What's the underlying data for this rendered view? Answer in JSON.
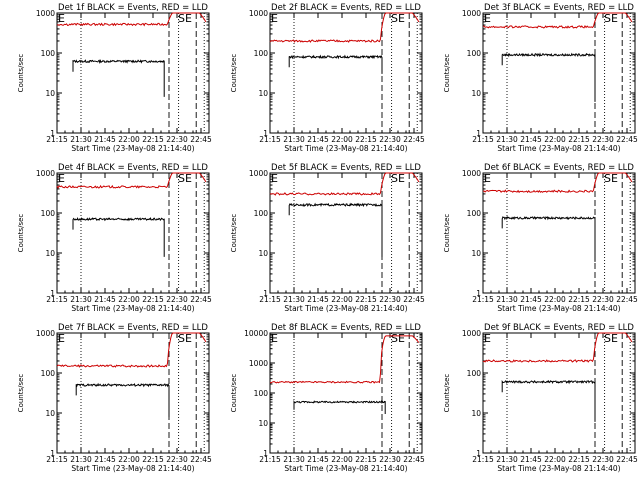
{
  "chart_data": [
    {
      "type": "line",
      "title": "Det 1f BLACK = Events, RED = LLD",
      "xlabel": "Start Time (23-May-08 21:14:40)",
      "ylabel": "Counts/sec",
      "xticks": [
        "21:15",
        "21:30",
        "21:45",
        "22:00",
        "22:15",
        "22:30",
        "22:45"
      ],
      "yticks": [
        "1",
        "10",
        "100",
        "1000"
      ],
      "ylim": [
        1,
        1000
      ],
      "yscale": "log",
      "markers": [
        {
          "label": "E",
          "x": "21:15"
        },
        {
          "label": "SE",
          "x": "22:30"
        }
      ],
      "series": [
        {
          "name": "Events",
          "color": "#000000",
          "start": "21:25",
          "end": "22:22",
          "level": 62,
          "dip_to": 8
        },
        {
          "name": "LLD",
          "color": "#cc0000",
          "start": "21:15",
          "end": "22:48",
          "level": 520,
          "end_level": 1000
        }
      ]
    },
    {
      "type": "line",
      "title": "Det 2f BLACK = Events, RED = LLD",
      "xlabel": "Start Time (23-May-08 21:14:40)",
      "ylabel": "Counts/sec",
      "xticks": [
        "21:15",
        "21:30",
        "21:45",
        "22:00",
        "22:15",
        "22:30",
        "22:45"
      ],
      "yticks": [
        "1",
        "10",
        "100",
        "1000"
      ],
      "ylim": [
        1,
        1000
      ],
      "yscale": "log",
      "markers": [
        {
          "label": "E",
          "x": "21:15"
        },
        {
          "label": "SE",
          "x": "22:30"
        }
      ],
      "series": [
        {
          "name": "Events",
          "color": "#000000",
          "start": "21:27",
          "end": "22:25",
          "level": 80,
          "dip_to": 30
        },
        {
          "name": "LLD",
          "color": "#cc0000",
          "start": "21:15",
          "end": "22:48",
          "level": 200,
          "end_level": 1000
        }
      ]
    },
    {
      "type": "line",
      "title": "Det 3f BLACK = Events, RED = LLD",
      "xlabel": "Start Time (23-May-08 21:14:40)",
      "ylabel": "Counts/sec",
      "xticks": [
        "21:15",
        "21:30",
        "21:45",
        "22:00",
        "22:15",
        "22:30",
        "22:45"
      ],
      "yticks": [
        "1",
        "10",
        "100",
        "1000"
      ],
      "ylim": [
        1,
        1000
      ],
      "yscale": "log",
      "markers": [
        {
          "label": "E",
          "x": "21:15"
        },
        {
          "label": "SE",
          "x": "22:30"
        }
      ],
      "series": [
        {
          "name": "Events",
          "color": "#000000",
          "start": "21:27",
          "end": "22:25",
          "level": 90,
          "dip_to": 6
        },
        {
          "name": "LLD",
          "color": "#cc0000",
          "start": "21:15",
          "end": "22:48",
          "level": 450,
          "end_level": 1000
        }
      ]
    },
    {
      "type": "line",
      "title": "Det 4f BLACK = Events, RED = LLD",
      "xlabel": "Start Time (23-May-08 21:14:40)",
      "ylabel": "Counts/sec",
      "xticks": [
        "21:15",
        "21:30",
        "21:45",
        "22:00",
        "22:15",
        "22:30",
        "22:45"
      ],
      "yticks": [
        "1",
        "10",
        "100",
        "1000"
      ],
      "ylim": [
        1,
        1000
      ],
      "yscale": "log",
      "markers": [
        {
          "label": "E",
          "x": "21:15"
        },
        {
          "label": "SE",
          "x": "22:30"
        }
      ],
      "series": [
        {
          "name": "Events",
          "color": "#000000",
          "start": "21:25",
          "end": "22:22",
          "level": 70,
          "dip_to": 8
        },
        {
          "name": "LLD",
          "color": "#cc0000",
          "start": "21:15",
          "end": "22:48",
          "level": 450,
          "end_level": 1000
        }
      ]
    },
    {
      "type": "line",
      "title": "Det 5f BLACK = Events, RED = LLD",
      "xlabel": "Start Time (23-May-08 21:14:40)",
      "ylabel": "Counts/sec",
      "xticks": [
        "21:15",
        "21:30",
        "21:45",
        "22:00",
        "22:15",
        "22:30",
        "22:45"
      ],
      "yticks": [
        "1",
        "10",
        "100",
        "1000"
      ],
      "ylim": [
        1,
        1000
      ],
      "yscale": "log",
      "markers": [
        {
          "label": "E",
          "x": "21:15"
        },
        {
          "label": "SE",
          "x": "22:30"
        }
      ],
      "series": [
        {
          "name": "Events",
          "color": "#000000",
          "start": "21:27",
          "end": "22:25",
          "level": 160,
          "dip_to": 8
        },
        {
          "name": "LLD",
          "color": "#cc0000",
          "start": "21:15",
          "end": "22:48",
          "level": 300,
          "end_level": 1000
        }
      ]
    },
    {
      "type": "line",
      "title": "Det 6f BLACK = Events, RED = LLD",
      "xlabel": "Start Time (23-May-08 21:14:40)",
      "ylabel": "Counts/sec",
      "xticks": [
        "21:15",
        "21:30",
        "21:45",
        "22:00",
        "22:15",
        "22:30",
        "22:45"
      ],
      "yticks": [
        "1",
        "10",
        "100",
        "1000"
      ],
      "ylim": [
        1,
        1000
      ],
      "yscale": "log",
      "markers": [
        {
          "label": "E",
          "x": "21:15"
        },
        {
          "label": "SE",
          "x": "22:30"
        }
      ],
      "series": [
        {
          "name": "Events",
          "color": "#000000",
          "start": "21:27",
          "end": "22:25",
          "level": 75,
          "dip_to": 6
        },
        {
          "name": "LLD",
          "color": "#cc0000",
          "start": "21:15",
          "end": "22:48",
          "level": 350,
          "end_level": 1000
        }
      ]
    },
    {
      "type": "line",
      "title": "Det 7f BLACK = Events, RED = LLD",
      "xlabel": "Start Time (23-May-08 21:14:40)",
      "ylabel": "Counts/sec",
      "xticks": [
        "21:15",
        "21:30",
        "21:45",
        "22:00",
        "22:15",
        "22:30",
        "22:45"
      ],
      "yticks": [
        "1",
        "10",
        "100",
        "1000"
      ],
      "ylim": [
        1,
        1000
      ],
      "yscale": "log",
      "markers": [
        {
          "label": "E",
          "x": "21:15"
        },
        {
          "label": "SE",
          "x": "22:30"
        }
      ],
      "series": [
        {
          "name": "Events",
          "color": "#000000",
          "start": "21:27",
          "end": "22:25",
          "level": 50,
          "dip_to": 8
        },
        {
          "name": "LLD",
          "color": "#cc0000",
          "start": "21:15",
          "end": "22:48",
          "level": 150,
          "end_level": 1000
        }
      ]
    },
    {
      "type": "line",
      "title": "Det 8f BLACK = Events, RED = LLD",
      "xlabel": "Start Time (23-May-08 21:14:40)",
      "ylabel": "Counts/sec",
      "xticks": [
        "21:15",
        "21:30",
        "21:45",
        "22:00",
        "22:15",
        "22:30",
        "22:45"
      ],
      "yticks": [
        "1",
        "10",
        "100",
        "1000",
        "10000"
      ],
      "ylim": [
        1,
        10000
      ],
      "yscale": "log",
      "markers": [
        {
          "label": "E",
          "x": "21:15"
        },
        {
          "label": "SE",
          "x": "22:30"
        }
      ],
      "series": [
        {
          "name": "Events",
          "color": "#000000",
          "start": "21:30",
          "end": "22:27",
          "level": 50,
          "dip_to": 20
        },
        {
          "name": "LLD",
          "color": "#cc0000",
          "start": "21:15",
          "end": "22:48",
          "level": 230,
          "end_level": 8000
        }
      ]
    },
    {
      "type": "line",
      "title": "Det 9f BLACK = Events, RED = LLD",
      "xlabel": "Start Time (23-May-08 21:14:40)",
      "ylabel": "Counts/sec",
      "xticks": [
        "21:15",
        "21:30",
        "21:45",
        "22:00",
        "22:15",
        "22:30",
        "22:45"
      ],
      "yticks": [
        "1",
        "10",
        "100",
        "1000"
      ],
      "ylim": [
        1,
        1000
      ],
      "yscale": "log",
      "markers": [
        {
          "label": "E",
          "x": "21:15"
        },
        {
          "label": "SE",
          "x": "22:30"
        }
      ],
      "series": [
        {
          "name": "Events",
          "color": "#000000",
          "start": "21:27",
          "end": "22:25",
          "level": 60,
          "dip_to": 6
        },
        {
          "name": "LLD",
          "color": "#cc0000",
          "start": "21:15",
          "end": "22:48",
          "level": 200,
          "end_level": 1000
        }
      ]
    }
  ]
}
